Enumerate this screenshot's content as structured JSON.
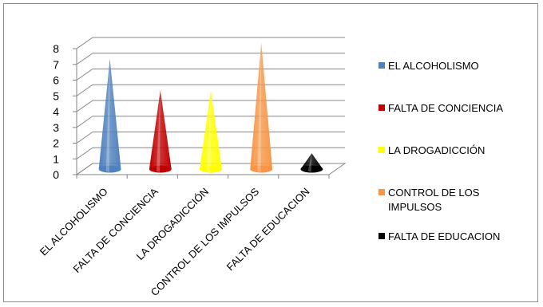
{
  "chart_data": {
    "type": "bar",
    "bar_shape": "cone",
    "title": "",
    "xlabel": "",
    "ylabel": "",
    "ylim": [
      0,
      8
    ],
    "yticks": [
      0,
      1,
      2,
      3,
      4,
      5,
      6,
      7,
      8
    ],
    "grid": true,
    "legend_position": "right",
    "categories": [
      "EL ALCOHOLISMO",
      "FALTA DE CONCIENCIA",
      "LA DROGADICCIÓN",
      "CONTROL DE LOS IMPULSOS",
      "FALTA DE EDUCACION"
    ],
    "values": [
      7,
      5,
      5,
      8,
      1
    ],
    "colors": [
      "#4f81bd",
      "#c00000",
      "#ffff00",
      "#f79646",
      "#000000"
    ],
    "legend": [
      {
        "label_lines": [
          "EL ALCOHOLISMO"
        ],
        "color": "#4f81bd"
      },
      {
        "label_lines": [
          "FALTA DE CONCIENCIA"
        ],
        "color": "#c00000"
      },
      {
        "label_lines": [
          "LA DROGADICCIÓN"
        ],
        "color": "#ffff00"
      },
      {
        "label_lines": [
          "CONTROL DE LOS",
          "IMPULSOS"
        ],
        "color": "#f79646"
      },
      {
        "label_lines": [
          "FALTA DE EDUCACION"
        ],
        "color": "#000000"
      }
    ]
  }
}
